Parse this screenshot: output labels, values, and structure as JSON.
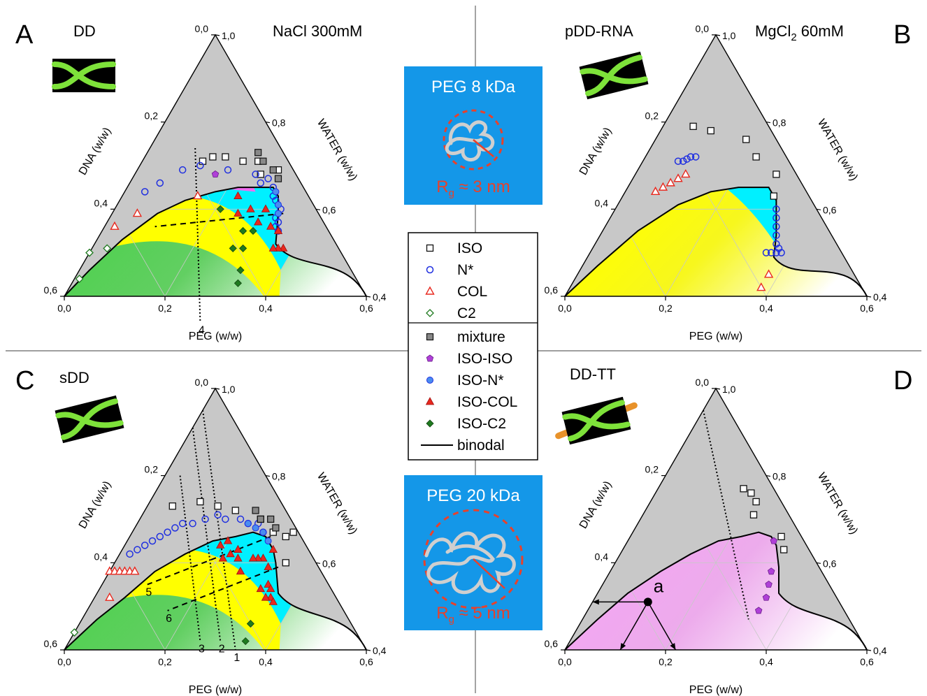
{
  "colors": {
    "iso_region": "#c8c8c8",
    "nstar_region": "#00f0ff",
    "col_region": "#ffff00",
    "c2_region": "#50d050",
    "isoiso_region": "#f3a6f2",
    "iso_marker": "#111111",
    "nstar_marker": "#1f2fe0",
    "col_marker": "#e8281e",
    "c2_marker": "#1f7a1f",
    "isoiso_marker": "#b040d8",
    "box_bg": "#1497e8",
    "rg_text": "#e8412b",
    "dna_icon": "#7ee23a",
    "tt_tail": "#e8922a"
  },
  "axes": {
    "peg_label": "PEG (w/w)",
    "dna_label": "DNA (w/w)",
    "water_label": "WATER (w/w)",
    "peg_ticks": [
      "0,0",
      "0,2",
      "0,4",
      "0,6"
    ],
    "dna_ticks": [
      "0,0",
      "0,2",
      "0,4",
      "0,6"
    ],
    "water_ticks": [
      "1,0",
      "0,8",
      "0,6",
      "0,4"
    ]
  },
  "boxes": [
    {
      "title": "PEG 8 kDa",
      "rg": "R",
      "rg_sub": "g",
      "rg_value": " ≈ 3 nm"
    },
    {
      "title": "PEG 20 kDa",
      "rg": "R",
      "rg_sub": "g",
      "rg_value": " ≈ 5 nm"
    }
  ],
  "legend": [
    {
      "label": "ISO",
      "symbol": "open-square",
      "color": "#111111"
    },
    {
      "label": "N*",
      "symbol": "open-circle",
      "color": "#1f2fe0"
    },
    {
      "label": "COL",
      "symbol": "open-triangle",
      "color": "#e8281e"
    },
    {
      "label": "C2",
      "symbol": "open-diamond",
      "color": "#1f7a1f"
    },
    {
      "label": "mixture",
      "symbol": "filled-square",
      "color": "#777777"
    },
    {
      "label": "ISO-ISO",
      "symbol": "filled-pentagon",
      "color": "#b040d8"
    },
    {
      "label": "ISO-N*",
      "symbol": "filled-circle",
      "color": "#4a8cf0"
    },
    {
      "label": "ISO-COL",
      "symbol": "filled-triangle",
      "color": "#e8281e"
    },
    {
      "label": "ISO-C2",
      "symbol": "filled-diamond",
      "color": "#1f7a1f"
    },
    {
      "label": "binodal",
      "symbol": "line",
      "color": "#000000"
    }
  ],
  "chart_data": [
    {
      "type": "scatter",
      "panel": "A",
      "title": "DD",
      "condition": "NaCl 300mM",
      "condition_sub": "",
      "condition_tail": "",
      "region": "nstar-col-c2",
      "binodal": [
        [
          0.0,
          0.6
        ],
        [
          0.02,
          0.52
        ],
        [
          0.05,
          0.42
        ],
        [
          0.09,
          0.32
        ],
        [
          0.13,
          0.25
        ],
        [
          0.18,
          0.18
        ],
        [
          0.22,
          0.13
        ],
        [
          0.26,
          0.09
        ],
        [
          0.29,
          0.06
        ],
        [
          0.31,
          0.06
        ],
        [
          0.33,
          0.08
        ],
        [
          0.36,
          0.12
        ]
      ],
      "series": [
        {
          "name": "ISO",
          "points": [
            [
              0.12,
              0.17
            ],
            [
              0.135,
              0.145
            ],
            [
              0.16,
              0.12
            ],
            [
              0.2,
              0.09
            ],
            [
              0.23,
              0.06
            ],
            [
              0.25,
              0.07
            ],
            [
              0.28,
              0.03
            ]
          ]
        },
        {
          "name": "N*",
          "points": [
            [
              0.04,
              0.32
            ],
            [
              0.06,
              0.28
            ],
            [
              0.09,
              0.22
            ],
            [
              0.12,
              0.18
            ],
            [
              0.18,
              0.13
            ],
            [
              0.24,
              0.08
            ],
            [
              0.26,
              0.08
            ],
            [
              0.27,
              0.06
            ],
            [
              0.29,
              0.06
            ],
            [
              0.3,
              0.07
            ],
            [
              0.31,
              0.07
            ],
            [
              0.33,
              0.07
            ],
            [
              0.33,
              0.09
            ],
            [
              0.34,
              0.09
            ],
            [
              0.34,
              0.1
            ],
            [
              0.35,
              0.1
            ]
          ]
        },
        {
          "name": "COL",
          "points": [
            [
              0.02,
              0.42
            ],
            [
              0.05,
              0.36
            ],
            [
              0.15,
              0.22
            ]
          ]
        },
        {
          "name": "C2",
          "points": [
            [
              0.0,
              0.5
            ],
            [
              0.01,
              0.55
            ],
            [
              0.03,
              0.46
            ]
          ]
        },
        {
          "name": "mixture",
          "points": [
            [
              0.22,
              0.05
            ],
            [
              0.24,
              0.05
            ],
            [
              0.27,
              0.04
            ],
            [
              0.29,
              0.04
            ]
          ]
        },
        {
          "name": "ISO-ISO",
          "points": [
            [
              0.16,
              0.16
            ]
          ]
        },
        {
          "name": "ISO-N*",
          "points": [
            [
              0.3,
              0.06
            ],
            [
              0.32,
              0.07
            ],
            [
              0.33,
              0.08
            ]
          ]
        },
        {
          "name": "ISO-COL",
          "points": [
            [
              0.3,
              0.1
            ],
            [
              0.33,
              0.11
            ],
            [
              0.35,
              0.1
            ],
            [
              0.38,
              0.11
            ],
            [
              0.37,
              0.12
            ],
            [
              0.27,
              0.13
            ],
            [
              0.25,
              0.16
            ],
            [
              0.23,
              0.14
            ],
            [
              0.3,
              0.13
            ],
            [
              0.36,
              0.13
            ]
          ]
        },
        {
          "name": "ISO-C2",
          "points": [
            [
              0.21,
              0.19
            ],
            [
              0.28,
              0.17
            ],
            [
              0.3,
              0.15
            ],
            [
              0.28,
              0.21
            ],
            [
              0.3,
              0.19
            ],
            [
              0.32,
              0.22
            ],
            [
              0.33,
              0.24
            ]
          ]
        }
      ],
      "lines": [
        {
          "style": "dotted",
          "from": [
            0.09,
            0.17
          ],
          "to": [
            0.3,
            0.36
          ],
          "label": "4"
        },
        {
          "style": "dashed",
          "from": [
            0.34,
            0.07
          ],
          "to": [
            0.1,
            0.34
          ],
          "label": ""
        }
      ]
    },
    {
      "type": "scatter",
      "panel": "B",
      "title": "pDD-RNA",
      "condition": "MgCl",
      "condition_sub": "2",
      "condition_tail": " 60mM",
      "region": "nstar-col",
      "binodal": [
        [
          0.0,
          0.6
        ],
        [
          0.03,
          0.5
        ],
        [
          0.07,
          0.38
        ],
        [
          0.12,
          0.27
        ],
        [
          0.17,
          0.19
        ],
        [
          0.22,
          0.13
        ],
        [
          0.26,
          0.09
        ],
        [
          0.28,
          0.07
        ],
        [
          0.31,
          0.07
        ],
        [
          0.33,
          0.09
        ],
        [
          0.35,
          0.11
        ],
        [
          0.37,
          0.14
        ]
      ],
      "series": [
        {
          "name": "ISO",
          "points": [
            [
              0.06,
              0.15
            ],
            [
              0.1,
              0.12
            ],
            [
              0.18,
              0.06
            ],
            [
              0.22,
              0.06
            ],
            [
              0.28,
              0.04
            ],
            [
              0.3,
              0.07
            ]
          ]
        },
        {
          "name": "N*",
          "points": [
            [
              0.07,
              0.22
            ],
            [
              0.08,
              0.21
            ],
            [
              0.085,
              0.2
            ],
            [
              0.09,
              0.19
            ],
            [
              0.1,
              0.18
            ],
            [
              0.32,
              0.08
            ],
            [
              0.33,
              0.09
            ],
            [
              0.34,
              0.1
            ],
            [
              0.35,
              0.11
            ],
            [
              0.36,
              0.12
            ],
            [
              0.37,
              0.12
            ],
            [
              0.38,
              0.12
            ],
            [
              0.37,
              0.13
            ],
            [
              0.36,
              0.14
            ],
            [
              0.35,
              0.15
            ]
          ]
        },
        {
          "name": "COL",
          "points": [
            [
              0.06,
              0.3
            ],
            [
              0.07,
              0.28
            ],
            [
              0.08,
              0.26
            ],
            [
              0.09,
              0.24
            ],
            [
              0.1,
              0.22
            ],
            [
              0.38,
              0.17
            ],
            [
              0.38,
              0.2
            ]
          ]
        }
      ],
      "lines": []
    },
    {
      "type": "scatter",
      "panel": "C",
      "title": "sDD",
      "condition": "",
      "condition_sub": "",
      "condition_tail": "",
      "region": "nstar-col-c2",
      "binodal": [
        [
          0.0,
          0.6
        ],
        [
          0.03,
          0.5
        ],
        [
          0.06,
          0.42
        ],
        [
          0.09,
          0.33
        ],
        [
          0.13,
          0.25
        ],
        [
          0.17,
          0.18
        ],
        [
          0.21,
          0.13
        ],
        [
          0.24,
          0.09
        ],
        [
          0.27,
          0.07
        ],
        [
          0.3,
          0.07
        ],
        [
          0.32,
          0.08
        ],
        [
          0.36,
          0.11
        ]
      ],
      "series": [
        {
          "name": "ISO",
          "points": [
            [
              0.05,
              0.22
            ],
            [
              0.1,
              0.16
            ],
            [
              0.14,
              0.13
            ],
            [
              0.18,
              0.1
            ],
            [
              0.24,
              0.06
            ],
            [
              0.28,
              0.05
            ],
            [
              0.31,
              0.03
            ],
            [
              0.32,
              0.01
            ],
            [
              0.34,
              0.06
            ]
          ]
        },
        {
          "name": "N*",
          "points": [
            [
              0.02,
              0.36
            ],
            [
              0.03,
              0.34
            ],
            [
              0.04,
              0.32
            ],
            [
              0.05,
              0.3
            ],
            [
              0.06,
              0.28
            ],
            [
              0.07,
              0.26
            ],
            [
              0.08,
              0.24
            ],
            [
              0.09,
              0.22
            ],
            [
              0.11,
              0.2
            ],
            [
              0.13,
              0.17
            ],
            [
              0.15,
              0.14
            ],
            [
              0.17,
              0.13
            ],
            [
              0.2,
              0.1
            ],
            [
              0.22,
              0.09
            ],
            [
              0.24,
              0.07
            ],
            [
              0.26,
              0.07
            ]
          ]
        },
        {
          "name": "COL",
          "points": [
            [
              0.0,
              0.42
            ],
            [
              0.01,
              0.41
            ],
            [
              0.02,
              0.4
            ],
            [
              0.03,
              0.39
            ],
            [
              0.04,
              0.38
            ],
            [
              0.05,
              0.37
            ],
            [
              0.03,
              0.45
            ]
          ]
        },
        {
          "name": "C2",
          "points": [
            [
              0.0,
              0.56
            ]
          ]
        },
        {
          "name": "mixture",
          "points": [
            [
              0.22,
              0.06
            ],
            [
              0.24,
              0.06
            ],
            [
              0.26,
              0.04
            ],
            [
              0.28,
              0.04
            ]
          ]
        },
        {
          "name": "ISO-N*",
          "points": [
            [
              0.22,
              0.09
            ],
            [
              0.24,
              0.08
            ],
            [
              0.26,
              0.07
            ],
            [
              0.28,
              0.07
            ]
          ]
        },
        {
          "name": "ISO-COL",
          "points": [
            [
              0.3,
              0.07
            ],
            [
              0.29,
              0.1
            ],
            [
              0.31,
              0.1
            ],
            [
              0.28,
              0.11
            ],
            [
              0.27,
              0.12
            ],
            [
              0.33,
              0.12
            ],
            [
              0.34,
              0.12
            ],
            [
              0.35,
              0.13
            ],
            [
              0.32,
              0.14
            ],
            [
              0.24,
              0.15
            ],
            [
              0.22,
              0.16
            ],
            [
              0.26,
              0.16
            ],
            [
              0.21,
              0.18
            ],
            [
              0.23,
              0.14
            ],
            [
              0.2,
              0.15
            ],
            [
              0.19,
              0.17
            ],
            [
              0.34,
              0.14
            ],
            [
              0.36,
              0.13
            ]
          ]
        },
        {
          "name": "ISO-C2",
          "points": [
            [
              0.34,
              0.2
            ],
            [
              0.35,
              0.23
            ]
          ]
        }
      ],
      "lines": [
        {
          "style": "dotted",
          "from": [
            0.0,
            0.05
          ],
          "to": [
            0.34,
            0.26
          ],
          "label": "1"
        },
        {
          "style": "dotted",
          "from": [
            0.0,
            0.09
          ],
          "to": [
            0.3,
            0.28
          ],
          "label": "2"
        },
        {
          "style": "dotted",
          "from": [
            0.03,
            0.17
          ],
          "to": [
            0.26,
            0.32
          ],
          "label": "3"
        },
        {
          "style": "dashed",
          "from": [
            0.28,
            0.06
          ],
          "to": [
            0.09,
            0.36
          ],
          "label": "5"
        },
        {
          "style": "dashed",
          "from": [
            0.33,
            0.08
          ],
          "to": [
            0.16,
            0.35
          ],
          "label": "6"
        }
      ]
    },
    {
      "type": "scatter",
      "panel": "D",
      "title": "DD-TT",
      "condition": "",
      "condition_sub": "",
      "condition_tail": "",
      "region": "isoiso",
      "binodal": [
        [
          0.0,
          0.6
        ],
        [
          0.03,
          0.5
        ],
        [
          0.06,
          0.41
        ],
        [
          0.1,
          0.32
        ],
        [
          0.14,
          0.24
        ],
        [
          0.18,
          0.17
        ],
        [
          0.22,
          0.12
        ],
        [
          0.25,
          0.08
        ],
        [
          0.28,
          0.06
        ],
        [
          0.3,
          0.06
        ],
        [
          0.33,
          0.08
        ],
        [
          0.36,
          0.11
        ]
      ],
      "series": [
        {
          "name": "ISO",
          "points": [
            [
              0.17,
              0.06
            ],
            [
              0.19,
              0.05
            ],
            [
              0.21,
              0.05
            ],
            [
              0.22,
              0.07
            ],
            [
              0.32,
              0.05
            ],
            [
              0.3,
              0.04
            ]
          ]
        },
        {
          "name": "ISO-ISO",
          "points": [
            [
              0.29,
              0.06
            ],
            [
              0.32,
              0.1
            ],
            [
              0.33,
              0.12
            ],
            [
              0.34,
              0.14
            ],
            [
              0.34,
              0.17
            ]
          ]
        }
      ],
      "lines": [
        {
          "style": "dotted",
          "from": [
            0.0,
            0.05
          ],
          "to": [
            0.33,
            0.2
          ],
          "label": ""
        }
      ],
      "annotation": {
        "label": "a",
        "point": [
          0.11,
          0.38
        ]
      }
    }
  ]
}
